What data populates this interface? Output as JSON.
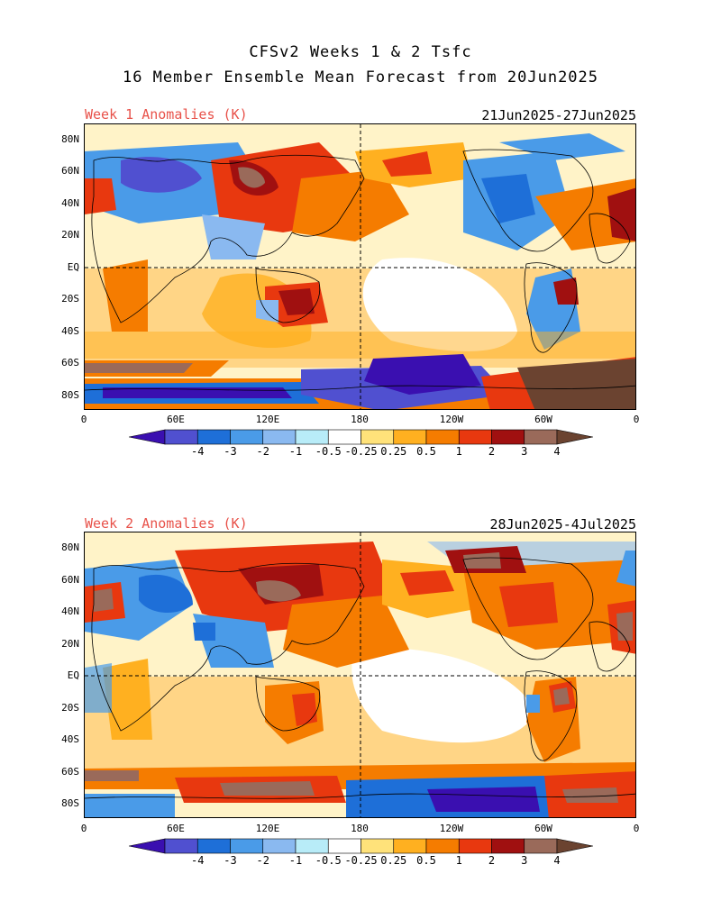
{
  "title": {
    "line1": "CFSv2 Weeks 1 & 2 Tsfc",
    "line2": "16 Member Ensemble Mean Forecast from 20Jun2025"
  },
  "panels": [
    {
      "label": "Week 1 Anomalies (K)",
      "dates": "21Jun2025-27Jun2025"
    },
    {
      "label": "Week 2 Anomalies (K)",
      "dates": "28Jun2025-4Jul2025"
    }
  ],
  "lat_labels": [
    "80N",
    "60N",
    "40N",
    "20N",
    "EQ",
    "20S",
    "40S",
    "60S",
    "80S"
  ],
  "lon_labels": [
    "0",
    "60E",
    "120E",
    "180",
    "120W",
    "60W",
    "0"
  ],
  "colorbar": {
    "labels": [
      "-4",
      "-3",
      "-2",
      "-1",
      "-0.5",
      "-0.25",
      "0.25",
      "0.5",
      "1",
      "2",
      "3",
      "4"
    ],
    "colors": [
      "#3a0fb0",
      "#5050d0",
      "#1e6fd8",
      "#4a9be8",
      "#8ab9f0",
      "#b8ecf8",
      "#ffffff",
      "#ffe27a",
      "#ffb020",
      "#f57c00",
      "#e8380f",
      "#a01010",
      "#9a6a5a",
      "#6b4330"
    ]
  },
  "accent_color": "#e8524a"
}
